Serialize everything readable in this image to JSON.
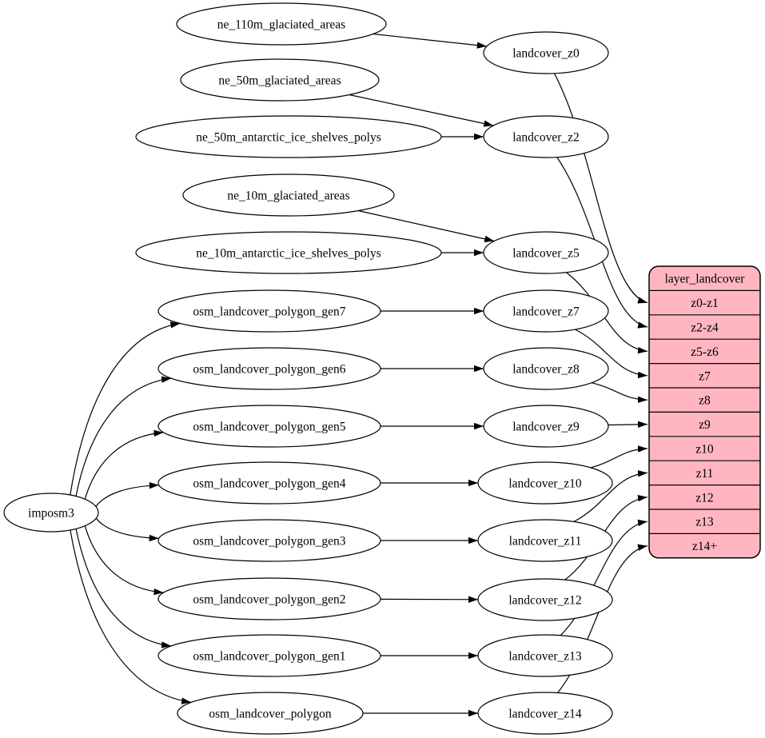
{
  "diagram": {
    "kind": "graphviz-flow",
    "colors": {
      "background": "#ffffff",
      "node_fill": "#ffffff",
      "stroke": "#000000",
      "table_fill": "#ffb6c1"
    },
    "nodes": [
      {
        "id": "imposm3",
        "label": "imposm3"
      },
      {
        "id": "ne_110m_glaciated_areas",
        "label": "ne_110m_glaciated_areas"
      },
      {
        "id": "ne_50m_glaciated_areas",
        "label": "ne_50m_glaciated_areas"
      },
      {
        "id": "ne_50m_antarctic_ice_shelves_polys",
        "label": "ne_50m_antarctic_ice_shelves_polys"
      },
      {
        "id": "ne_10m_glaciated_areas",
        "label": "ne_10m_glaciated_areas"
      },
      {
        "id": "ne_10m_antarctic_ice_shelves_polys",
        "label": "ne_10m_antarctic_ice_shelves_polys"
      },
      {
        "id": "osm_landcover_polygon_gen7",
        "label": "osm_landcover_polygon_gen7"
      },
      {
        "id": "osm_landcover_polygon_gen6",
        "label": "osm_landcover_polygon_gen6"
      },
      {
        "id": "osm_landcover_polygon_gen5",
        "label": "osm_landcover_polygon_gen5"
      },
      {
        "id": "osm_landcover_polygon_gen4",
        "label": "osm_landcover_polygon_gen4"
      },
      {
        "id": "osm_landcover_polygon_gen3",
        "label": "osm_landcover_polygon_gen3"
      },
      {
        "id": "osm_landcover_polygon_gen2",
        "label": "osm_landcover_polygon_gen2"
      },
      {
        "id": "osm_landcover_polygon_gen1",
        "label": "osm_landcover_polygon_gen1"
      },
      {
        "id": "osm_landcover_polygon",
        "label": "osm_landcover_polygon"
      },
      {
        "id": "landcover_z0",
        "label": "landcover_z0"
      },
      {
        "id": "landcover_z2",
        "label": "landcover_z2"
      },
      {
        "id": "landcover_z5",
        "label": "landcover_z5"
      },
      {
        "id": "landcover_z7",
        "label": "landcover_z7"
      },
      {
        "id": "landcover_z8",
        "label": "landcover_z8"
      },
      {
        "id": "landcover_z9",
        "label": "landcover_z9"
      },
      {
        "id": "landcover_z10",
        "label": "landcover_z10"
      },
      {
        "id": "landcover_z11",
        "label": "landcover_z11"
      },
      {
        "id": "landcover_z12",
        "label": "landcover_z12"
      },
      {
        "id": "landcover_z13",
        "label": "landcover_z13"
      },
      {
        "id": "landcover_z14",
        "label": "landcover_z14"
      }
    ],
    "table": {
      "id": "layer_landcover",
      "title": "layer_landcover",
      "rows": [
        "z0-z1",
        "z2-z4",
        "z5-z6",
        "z7",
        "z8",
        "z9",
        "z10",
        "z11",
        "z12",
        "z13",
        "z14+"
      ]
    },
    "edges": [
      {
        "from": "ne_110m_glaciated_areas",
        "to": "landcover_z0"
      },
      {
        "from": "ne_50m_glaciated_areas",
        "to": "landcover_z2"
      },
      {
        "from": "ne_50m_antarctic_ice_shelves_polys",
        "to": "landcover_z2"
      },
      {
        "from": "ne_10m_glaciated_areas",
        "to": "landcover_z5"
      },
      {
        "from": "ne_10m_antarctic_ice_shelves_polys",
        "to": "landcover_z5"
      },
      {
        "from": "osm_landcover_polygon_gen7",
        "to": "landcover_z7"
      },
      {
        "from": "osm_landcover_polygon_gen6",
        "to": "landcover_z8"
      },
      {
        "from": "osm_landcover_polygon_gen5",
        "to": "landcover_z9"
      },
      {
        "from": "osm_landcover_polygon_gen4",
        "to": "landcover_z10"
      },
      {
        "from": "osm_landcover_polygon_gen3",
        "to": "landcover_z11"
      },
      {
        "from": "osm_landcover_polygon_gen2",
        "to": "landcover_z12"
      },
      {
        "from": "osm_landcover_polygon_gen1",
        "to": "landcover_z13"
      },
      {
        "from": "osm_landcover_polygon",
        "to": "landcover_z14"
      },
      {
        "from": "imposm3",
        "to": "osm_landcover_polygon_gen7"
      },
      {
        "from": "imposm3",
        "to": "osm_landcover_polygon_gen6"
      },
      {
        "from": "imposm3",
        "to": "osm_landcover_polygon_gen5"
      },
      {
        "from": "imposm3",
        "to": "osm_landcover_polygon_gen4"
      },
      {
        "from": "imposm3",
        "to": "osm_landcover_polygon_gen3"
      },
      {
        "from": "imposm3",
        "to": "osm_landcover_polygon_gen2"
      },
      {
        "from": "imposm3",
        "to": "osm_landcover_polygon_gen1"
      },
      {
        "from": "imposm3",
        "to": "osm_landcover_polygon"
      },
      {
        "from": "landcover_z0",
        "to": "row:0"
      },
      {
        "from": "landcover_z2",
        "to": "row:1"
      },
      {
        "from": "landcover_z5",
        "to": "row:2"
      },
      {
        "from": "landcover_z7",
        "to": "row:3"
      },
      {
        "from": "landcover_z8",
        "to": "row:4"
      },
      {
        "from": "landcover_z9",
        "to": "row:5"
      },
      {
        "from": "landcover_z10",
        "to": "row:6"
      },
      {
        "from": "landcover_z11",
        "to": "row:7"
      },
      {
        "from": "landcover_z12",
        "to": "row:8"
      },
      {
        "from": "landcover_z13",
        "to": "row:9"
      },
      {
        "from": "landcover_z14",
        "to": "row:10"
      }
    ]
  }
}
